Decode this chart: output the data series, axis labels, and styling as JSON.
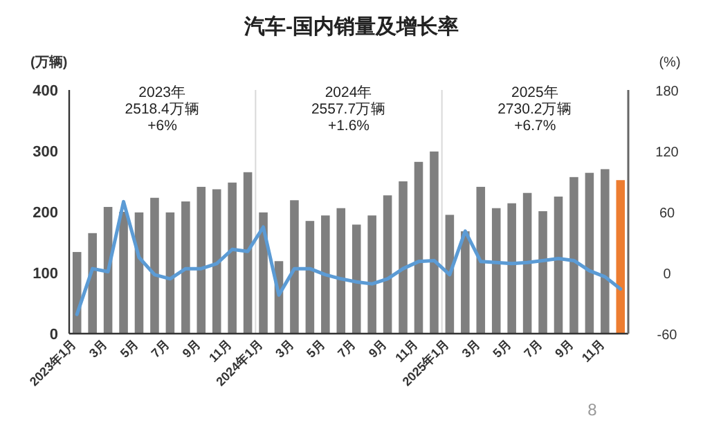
{
  "chart_data": {
    "type": "bar",
    "title": "汽车-国内销量及增长率",
    "ylabel": "(万辆)",
    "y2label": "(%)",
    "categories": [
      "2023年1月",
      null,
      "3月",
      null,
      "5月",
      null,
      "7月",
      null,
      "9月",
      null,
      "11月",
      null,
      "2024年1月",
      null,
      "3月",
      null,
      "5月",
      null,
      "7月",
      null,
      "9月",
      null,
      "11月",
      null,
      "2025年1月",
      null,
      "3月",
      null,
      "5月",
      null,
      "7月",
      null,
      "9月",
      null,
      "11月",
      null
    ],
    "series": [
      {
        "colors": [
          "#7f7f7f",
          "#7f7f7f",
          "#7f7f7f",
          "#7f7f7f",
          "#7f7f7f",
          "#7f7f7f",
          "#7f7f7f",
          "#7f7f7f",
          "#7f7f7f",
          "#7f7f7f",
          "#7f7f7f",
          "#7f7f7f",
          "#7f7f7f",
          "#7f7f7f",
          "#7f7f7f",
          "#7f7f7f",
          "#7f7f7f",
          "#7f7f7f",
          "#7f7f7f",
          "#7f7f7f",
          "#7f7f7f",
          "#7f7f7f",
          "#7f7f7f",
          "#7f7f7f",
          "#7f7f7f",
          "#7f7f7f",
          "#7f7f7f",
          "#7f7f7f",
          "#7f7f7f",
          "#7f7f7f",
          "#7f7f7f",
          "#7f7f7f",
          "#7f7f7f",
          "#7f7f7f",
          "#7f7f7f",
          "#ed7d31"
        ],
        "values": [
          134,
          165,
          208,
          200,
          199,
          223,
          199,
          217,
          241,
          237,
          248,
          265,
          199,
          119,
          219,
          185,
          194,
          206,
          179,
          194,
          227,
          250,
          282,
          299,
          195,
          168,
          241,
          206,
          214,
          231,
          201,
          225,
          257,
          264,
          270,
          252
        ]
      },
      {
        "type": "line",
        "axis": "y2",
        "color": "#5b9bd5",
        "values": [
          -41,
          4,
          1,
          70,
          15,
          -2,
          -6,
          4,
          4,
          9,
          23,
          21,
          45,
          -22,
          4,
          4,
          -2,
          -6,
          -9,
          -11,
          -6,
          4,
          11,
          12,
          -2,
          41,
          11,
          10,
          9,
          10,
          12,
          14,
          12,
          2,
          -4,
          -16
        ]
      }
    ],
    "ylim": [
      0,
      400
    ],
    "yticks": [
      0,
      100,
      200,
      300,
      400
    ],
    "y2lim": [
      -60,
      180
    ],
    "y2ticks": [
      -60,
      0,
      60,
      120,
      180
    ],
    "annotations": [
      "2023年\n2518.4万辆\n+6%",
      "2024年\n2557.7万辆\n+1.6%",
      "2025年\n2730.2万辆\n+6.7%",
      "8"
    ],
    "grid": false,
    "marker": "none",
    "line_style": "solid"
  }
}
